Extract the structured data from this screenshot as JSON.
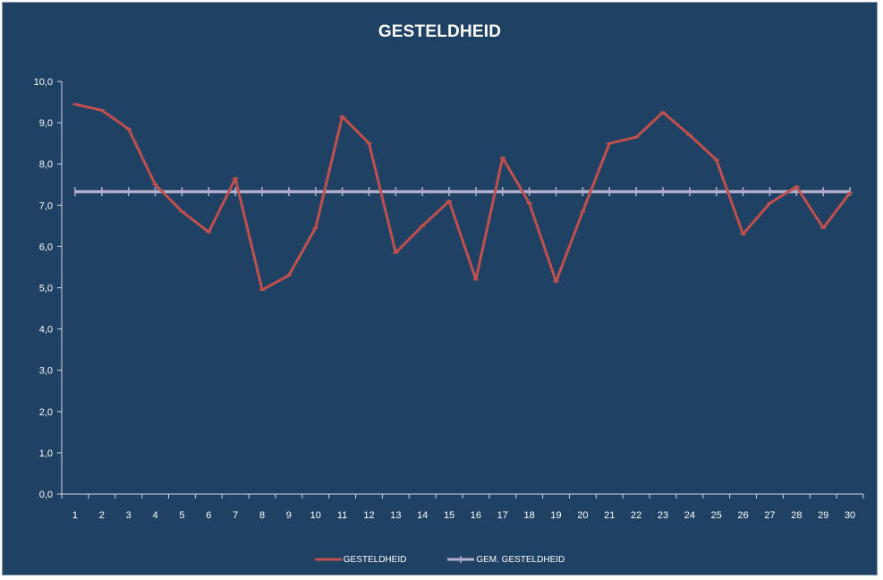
{
  "chart_data": {
    "type": "line",
    "title": "GESTELDHEID",
    "x": [
      1,
      2,
      3,
      4,
      5,
      6,
      7,
      8,
      9,
      10,
      11,
      12,
      13,
      14,
      15,
      16,
      17,
      18,
      19,
      20,
      21,
      22,
      23,
      24,
      25,
      26,
      27,
      28,
      29,
      30
    ],
    "ylim": [
      0,
      10
    ],
    "yticks": [
      "0,0",
      "1,0",
      "2,0",
      "3,0",
      "4,0",
      "5,0",
      "6,0",
      "7,0",
      "8,0",
      "9,0",
      "10,0"
    ],
    "grid": false,
    "legend_position": "bottom",
    "series": [
      {
        "name": "GESTELDHEID",
        "color": "#c0504d",
        "values": [
          9.45,
          9.3,
          8.85,
          7.5,
          6.85,
          6.35,
          7.65,
          4.95,
          5.3,
          6.45,
          9.15,
          8.5,
          5.85,
          6.5,
          7.1,
          5.2,
          8.15,
          7.05,
          5.15,
          6.85,
          8.5,
          8.65,
          9.25,
          8.7,
          8.1,
          6.3,
          7.05,
          7.45,
          6.45,
          7.3
        ]
      },
      {
        "name": "GEM. GESTELDHEID",
        "color": "#b4b0d0",
        "values": [
          7.33,
          7.33,
          7.33,
          7.33,
          7.33,
          7.33,
          7.33,
          7.33,
          7.33,
          7.33,
          7.33,
          7.33,
          7.33,
          7.33,
          7.33,
          7.33,
          7.33,
          7.33,
          7.33,
          7.33,
          7.33,
          7.33,
          7.33,
          7.33,
          7.33,
          7.33,
          7.33,
          7.33,
          7.33,
          7.33
        ]
      }
    ]
  }
}
